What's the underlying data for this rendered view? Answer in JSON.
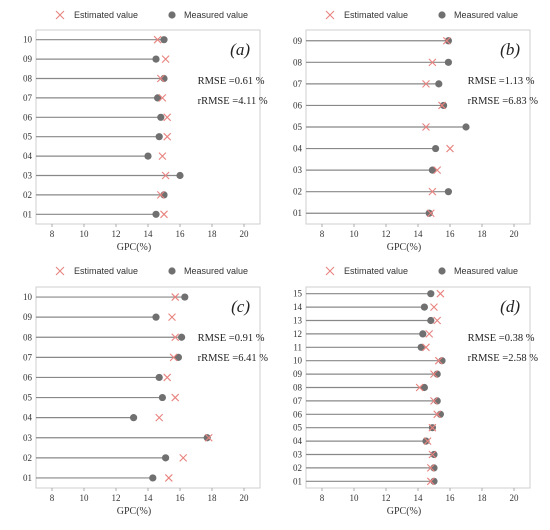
{
  "chart_data": [
    {
      "type": "lollipop",
      "panel_label": "(a)",
      "legend": [
        "Estimated value",
        "Measured value"
      ],
      "xlabel": "GPC(%)",
      "xlim": [
        7,
        21
      ],
      "xticks": [
        8,
        10,
        12,
        14,
        16,
        18,
        20
      ],
      "categories": [
        "01",
        "02",
        "03",
        "04",
        "05",
        "06",
        "07",
        "08",
        "09",
        "10"
      ],
      "series": [
        {
          "name": "Measured value",
          "values": [
            14.5,
            15.0,
            16.0,
            14.0,
            14.7,
            14.8,
            14.6,
            15.0,
            14.5,
            15.0
          ]
        },
        {
          "name": "Estimated value",
          "values": [
            15.0,
            14.8,
            15.1,
            14.9,
            15.2,
            15.2,
            14.9,
            14.8,
            15.1,
            14.6
          ]
        }
      ],
      "stats": [
        "RMSE =0.61 %",
        "rRMSE =4.11 %"
      ],
      "colors": {
        "measured": "#707070",
        "estimated": "#e8837f",
        "stem": "#888888"
      }
    },
    {
      "type": "lollipop",
      "panel_label": "(b)",
      "legend": [
        "Estimated value",
        "Measured value"
      ],
      "xlabel": "GPC(%)",
      "xlim": [
        7,
        21
      ],
      "xticks": [
        8,
        10,
        12,
        14,
        16,
        18,
        20
      ],
      "categories": [
        "01",
        "02",
        "03",
        "04",
        "05",
        "06",
        "07",
        "08",
        "09"
      ],
      "series": [
        {
          "name": "Measured value",
          "values": [
            14.7,
            15.9,
            14.9,
            15.1,
            17.0,
            15.6,
            15.3,
            15.9,
            15.9
          ]
        },
        {
          "name": "Estimated value",
          "values": [
            14.8,
            14.9,
            15.2,
            16.0,
            14.5,
            15.5,
            14.5,
            14.9,
            15.8
          ]
        }
      ],
      "stats": [
        "RMSE =1.13 %",
        "rRMSE =6.83 %"
      ],
      "colors": {
        "measured": "#707070",
        "estimated": "#e8837f",
        "stem": "#888888"
      }
    },
    {
      "type": "lollipop",
      "panel_label": "(c)",
      "legend": [
        "Estimated value",
        "Measured value"
      ],
      "xlabel": "GPC(%)",
      "xlim": [
        7,
        21
      ],
      "xticks": [
        8,
        10,
        12,
        14,
        16,
        18,
        20
      ],
      "categories": [
        "01",
        "02",
        "03",
        "04",
        "05",
        "06",
        "07",
        "08",
        "09",
        "10"
      ],
      "series": [
        {
          "name": "Measured value",
          "values": [
            14.3,
            15.1,
            17.7,
            13.1,
            14.9,
            14.7,
            15.9,
            16.1,
            14.5,
            16.3
          ]
        },
        {
          "name": "Estimated value",
          "values": [
            15.3,
            16.2,
            17.8,
            14.7,
            15.7,
            15.2,
            15.6,
            15.7,
            15.5,
            15.7
          ]
        }
      ],
      "stats": [
        "RMSE =0.91 %",
        "rRMSE =6.41 %"
      ],
      "colors": {
        "measured": "#707070",
        "estimated": "#e8837f",
        "stem": "#888888"
      }
    },
    {
      "type": "lollipop",
      "panel_label": "(d)",
      "legend": [
        "Estimated value",
        "Measured value"
      ],
      "xlabel": "GPC(%)",
      "xlim": [
        7,
        21
      ],
      "xticks": [
        8,
        10,
        12,
        14,
        16,
        18,
        20
      ],
      "categories": [
        "01",
        "02",
        "03",
        "04",
        "05",
        "06",
        "07",
        "08",
        "09",
        "10",
        "11",
        "12",
        "13",
        "14",
        "15"
      ],
      "series": [
        {
          "name": "Measured value",
          "values": [
            15.0,
            15.0,
            15.0,
            14.5,
            14.9,
            15.4,
            15.2,
            14.4,
            15.2,
            15.5,
            14.2,
            14.3,
            14.8,
            14.4,
            14.8
          ]
        },
        {
          "name": "Estimated value",
          "values": [
            14.8,
            14.8,
            14.9,
            14.6,
            14.9,
            15.2,
            15.0,
            14.1,
            15.0,
            15.3,
            14.5,
            14.7,
            15.2,
            15.0,
            15.4
          ]
        }
      ],
      "stats": [
        "RMSE =0.38 %",
        "rRMSE =2.58 %"
      ],
      "colors": {
        "measured": "#707070",
        "estimated": "#e8837f",
        "stem": "#888888"
      }
    }
  ]
}
